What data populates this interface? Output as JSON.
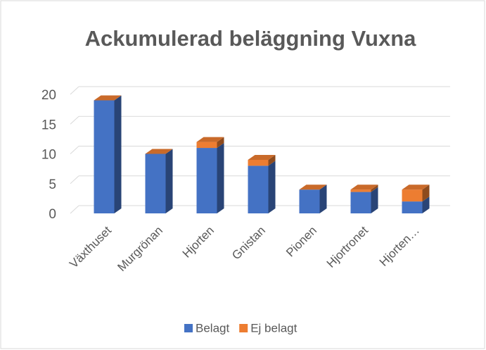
{
  "chart_data": {
    "type": "bar",
    "stacked": true,
    "title": "Ackumulerad beläggning Vuxna",
    "categories": [
      "Växthuset",
      "Murgrönan",
      "Hjorten",
      "Gnistan",
      "Pionen",
      "Hjortronet",
      "Hjorten…"
    ],
    "series": [
      {
        "name": "Belagt",
        "color": "#4472c4",
        "values": [
          19,
          10,
          11,
          8,
          4,
          3.6,
          2
        ]
      },
      {
        "name": "Ej belagt",
        "color": "#ed7d31",
        "values": [
          0,
          0,
          1,
          1,
          0,
          0.4,
          2
        ]
      }
    ],
    "ylim": [
      0,
      20
    ],
    "yticks": [
      0,
      5,
      10,
      15,
      20
    ],
    "grid": true,
    "legend": "bottom"
  }
}
